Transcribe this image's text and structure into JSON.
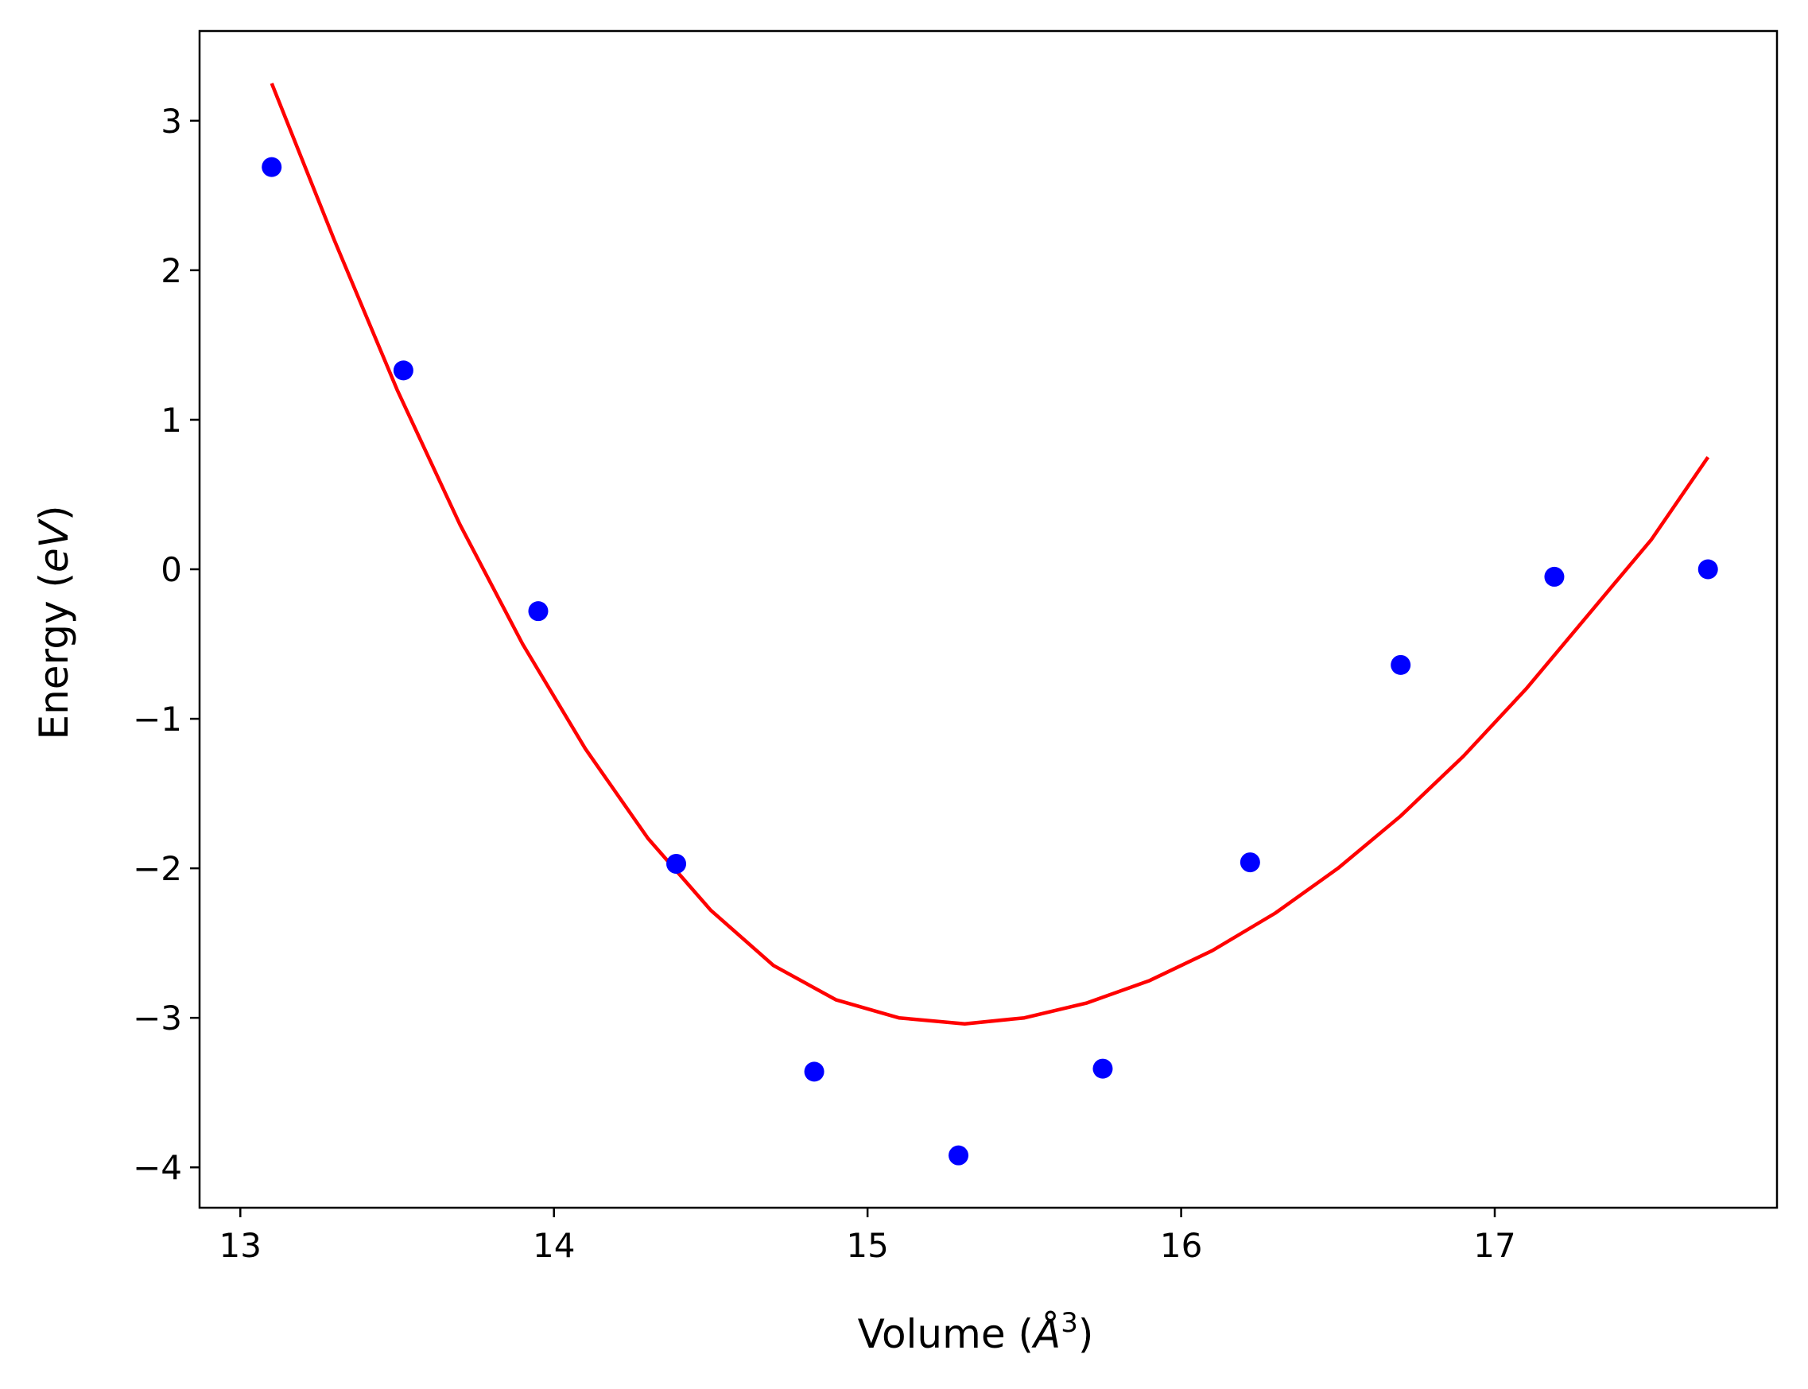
{
  "chart_data": {
    "type": "scatter",
    "xlabel": "Volume (",
    "xlabel_italic": "Å",
    "xlabel_sup": "3",
    "xlabel_close": ")",
    "ylabel": "Energy (",
    "ylabel_italic": "eV",
    "ylabel_close": ")",
    "xlim": [
      12.87,
      17.9
    ],
    "ylim": [
      -4.27,
      3.6
    ],
    "xticks": [
      13,
      14,
      15,
      16,
      17
    ],
    "xtick_labels": [
      "13",
      "14",
      "15",
      "16",
      "17"
    ],
    "yticks": [
      -4,
      -3,
      -2,
      -1,
      0,
      1,
      2,
      3
    ],
    "ytick_labels": [
      "−4",
      "−3",
      "−2",
      "−1",
      "0",
      "1",
      "2",
      "3"
    ],
    "grid": false,
    "series": [
      {
        "kind": "scatter",
        "color": "#0000ff",
        "points": [
          {
            "x": 13.1,
            "y": 2.69
          },
          {
            "x": 13.52,
            "y": 1.33
          },
          {
            "x": 13.95,
            "y": -0.28
          },
          {
            "x": 14.39,
            "y": -1.97
          },
          {
            "x": 14.83,
            "y": -3.36
          },
          {
            "x": 15.29,
            "y": -3.92
          },
          {
            "x": 15.75,
            "y": -3.34
          },
          {
            "x": 16.22,
            "y": -1.96
          },
          {
            "x": 16.7,
            "y": -0.64
          },
          {
            "x": 17.19,
            "y": -0.05
          },
          {
            "x": 17.68,
            "y": 0.0
          }
        ]
      },
      {
        "kind": "line",
        "color": "#ff0000",
        "points": [
          {
            "x": 13.1,
            "y": 3.25
          },
          {
            "x": 13.3,
            "y": 2.2
          },
          {
            "x": 13.5,
            "y": 1.2
          },
          {
            "x": 13.7,
            "y": 0.3
          },
          {
            "x": 13.9,
            "y": -0.5
          },
          {
            "x": 14.1,
            "y": -1.2
          },
          {
            "x": 14.3,
            "y": -1.8
          },
          {
            "x": 14.5,
            "y": -2.28
          },
          {
            "x": 14.7,
            "y": -2.65
          },
          {
            "x": 14.9,
            "y": -2.88
          },
          {
            "x": 15.1,
            "y": -3.0
          },
          {
            "x": 15.31,
            "y": -3.04
          },
          {
            "x": 15.5,
            "y": -3.0
          },
          {
            "x": 15.7,
            "y": -2.9
          },
          {
            "x": 15.9,
            "y": -2.75
          },
          {
            "x": 16.1,
            "y": -2.55
          },
          {
            "x": 16.3,
            "y": -2.3
          },
          {
            "x": 16.5,
            "y": -2.0
          },
          {
            "x": 16.7,
            "y": -1.65
          },
          {
            "x": 16.9,
            "y": -1.25
          },
          {
            "x": 17.1,
            "y": -0.8
          },
          {
            "x": 17.3,
            "y": -0.3
          },
          {
            "x": 17.5,
            "y": 0.2
          },
          {
            "x": 17.68,
            "y": 0.75
          }
        ]
      }
    ]
  }
}
